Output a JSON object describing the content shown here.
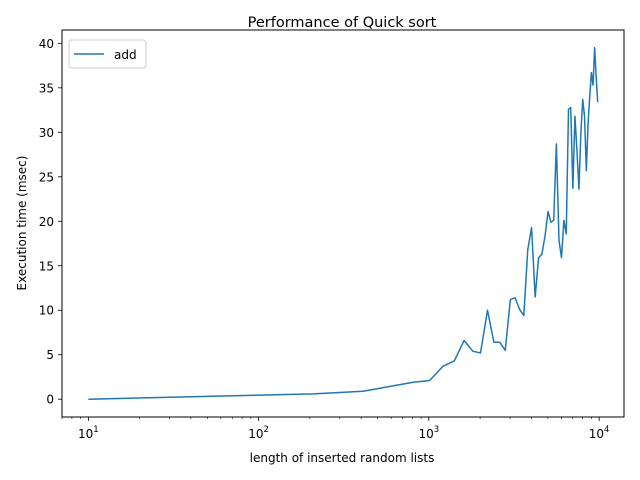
{
  "chart_data": {
    "type": "line",
    "title": "Performance of Quick sort",
    "xlabel": "length of inserted random lists",
    "ylabel": "Execution time (msec)",
    "xscale": "log",
    "xlim": [
      7,
      14000
    ],
    "ylim": [
      -2,
      41.5
    ],
    "grid": false,
    "legend_position": "top-left",
    "colors": {
      "series": "#1f77b4"
    },
    "x_ticks": [
      {
        "value": 10,
        "base": "10",
        "exp": "1"
      },
      {
        "value": 100,
        "base": "10",
        "exp": "2"
      },
      {
        "value": 1000,
        "base": "10",
        "exp": "3"
      },
      {
        "value": 10000,
        "base": "10",
        "exp": "4"
      }
    ],
    "y_ticks": [
      0,
      5,
      10,
      15,
      20,
      25,
      30,
      35,
      40
    ],
    "series": [
      {
        "name": "add",
        "x": [
          10,
          210,
          410,
          810,
          1010,
          1210,
          1410,
          1610,
          1810,
          2010,
          2210,
          2410,
          2610,
          2810,
          3010,
          3210,
          3410,
          3610,
          3810,
          4010,
          4210,
          4410,
          4610,
          4810,
          5010,
          5210,
          5410,
          5610,
          5810,
          6010,
          6210,
          6410,
          6610,
          6810,
          7010,
          7210,
          7410,
          7610,
          7810,
          8010,
          8210,
          8410,
          8610,
          8810,
          9010,
          9210,
          9410,
          9610,
          9810
        ],
        "values": [
          0.0,
          0.6,
          0.9,
          1.9,
          2.1,
          3.7,
          4.3,
          6.6,
          5.4,
          5.2,
          10.0,
          6.4,
          6.4,
          5.5,
          11.2,
          11.4,
          10.1,
          9.4,
          16.8,
          19.3,
          11.5,
          15.9,
          16.3,
          18.3,
          21.1,
          19.9,
          20.1,
          28.7,
          17.9,
          15.9,
          20.1,
          18.6,
          32.6,
          32.8,
          23.7,
          31.8,
          27.9,
          23.6,
          29.9,
          33.7,
          31.8,
          25.7,
          30.9,
          34.1,
          36.7,
          35.3,
          39.5,
          36.2,
          33.4
        ]
      }
    ]
  }
}
